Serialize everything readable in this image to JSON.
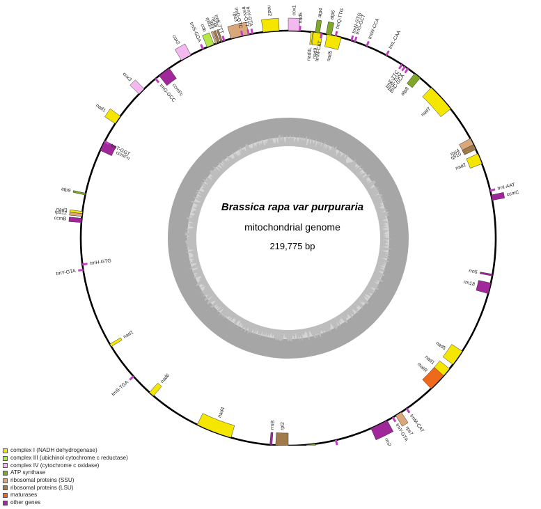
{
  "genome": {
    "organism": "Brassica rapa var purpuraria",
    "type": "mitochondrial genome",
    "size_label": "219,775 bp",
    "length_bp": 219775
  },
  "legend": [
    {
      "key": "complex1",
      "label": "complex I (NADH dehydrogenase)",
      "color": "#f5e600"
    },
    {
      "key": "complex3",
      "label": "complex III (ubichinol cytochrome c reductase)",
      "color": "#b4e64a"
    },
    {
      "key": "complex4",
      "label": "complex IV (cytochrome c oxidase)",
      "color": "#f4b8f0"
    },
    {
      "key": "atp",
      "label": "ATP synthase",
      "color": "#7fa829"
    },
    {
      "key": "ssu",
      "label": "ribosomal proteins (SSU)",
      "color": "#d9a77a"
    },
    {
      "key": "lsu",
      "label": "ribosomal proteins (LSU)",
      "color": "#a07a4a"
    },
    {
      "key": "maturases",
      "label": "maturases",
      "color": "#ee6a1a"
    },
    {
      "key": "other",
      "label": "other genes",
      "color": "#a0289a"
    }
  ],
  "trna_color": "#c040c0",
  "genes": [
    {
      "name": "nad9",
      "pos": 7.0,
      "len": 2.5,
      "strand": "in",
      "cat": "complex1"
    },
    {
      "name": "nad5",
      "pos": 10.8,
      "len": 4.0,
      "strand": "in",
      "cat": "complex1"
    },
    {
      "name": "trnN-GTG",
      "pos": 17.5,
      "strand": "out",
      "cat": "trna"
    },
    {
      "name": "trnS-GCT",
      "pos": 18.5,
      "strand": "out",
      "cat": "trna"
    },
    {
      "name": "trnW-CCA",
      "pos": 22.0,
      "strand": "out",
      "cat": "trna"
    },
    {
      "name": "trnL-CAA",
      "pos": 28.0,
      "strand": "out",
      "cat": "trna"
    },
    {
      "name": "trnE-TTC",
      "pos": 33.0,
      "strand": "in",
      "cat": "trna"
    },
    {
      "name": "trnS-TGG",
      "pos": 34.0,
      "strand": "in",
      "cat": "trna"
    },
    {
      "name": "trnC-GCA",
      "pos": 35.0,
      "strand": "in",
      "cat": "trna"
    },
    {
      "name": "atp8",
      "pos": 37.5,
      "len": 2.0,
      "strand": "in",
      "cat": "atp"
    },
    {
      "name": "nad7",
      "pos": 43.5,
      "len": 8.0,
      "strand": "in",
      "cat": "complex1"
    },
    {
      "name": "rps4",
      "pos": 61.3,
      "len": 3.0,
      "strand": "in",
      "cat": "ssu"
    },
    {
      "name": "rpl10",
      "pos": 63.2,
      "len": 1.5,
      "strand": "in",
      "cat": "lsu"
    },
    {
      "name": "nad2",
      "pos": 66.0,
      "len": 3.0,
      "strand": "in",
      "cat": "complex1"
    },
    {
      "name": "trnI-AAT",
      "pos": 76.5,
      "strand": "out",
      "cat": "trna"
    },
    {
      "name": "ccmC",
      "pos": 78.0,
      "len": 1.5,
      "strand": "out",
      "cat": "other"
    },
    {
      "name": "rrn5",
      "pos": 100.0,
      "strand": "in",
      "cat": "other"
    },
    {
      "name": "rrn18",
      "pos": 102.5,
      "len": 3.0,
      "strand": "in",
      "cat": "other"
    },
    {
      "name": "nad5",
      "pos": 123.0,
      "len": 4.5,
      "strand": "in",
      "cat": "complex1"
    },
    {
      "name": "nad1",
      "pos": 129.0,
      "len": 3.5,
      "strand": "in",
      "cat": "complex1"
    },
    {
      "name": "matR",
      "pos": 131.5,
      "len": 5.0,
      "strand": "in",
      "cat": "maturases"
    },
    {
      "name": "trnM-CAT",
      "pos": 145.0,
      "strand": "out",
      "cat": "trna"
    },
    {
      "name": "rps7",
      "pos": 147.0,
      "len": 1.8,
      "strand": "out",
      "cat": "ssu"
    },
    {
      "name": "trnY-GTA",
      "pos": 149.5,
      "strand": "out",
      "cat": "trna"
    },
    {
      "name": "rrn26",
      "pos": 151.5,
      "len": 5.0,
      "strand": "out",
      "cat": "other"
    },
    {
      "name": "trnM-CAT",
      "pos": 166.5,
      "strand": "out",
      "cat": "trna"
    },
    {
      "name": "atp1",
      "pos": 172.5,
      "len": 2.5,
      "strand": "out",
      "cat": "atp"
    },
    {
      "name": "rpl2",
      "pos": 180.0,
      "len": 3.5,
      "strand": "in",
      "cat": "lsu"
    },
    {
      "name": "rrnB",
      "pos": 184.5,
      "len": 0.6,
      "strand": "in",
      "cat": "other"
    },
    {
      "name": "nad4",
      "pos": 196.0,
      "len": 10.0,
      "strand": "in",
      "cat": "complex1"
    },
    {
      "name": "nad6",
      "pos": 220.5,
      "len": 1.5,
      "strand": "in",
      "cat": "complex1"
    },
    {
      "name": "trnS-TGA",
      "pos": 228.0,
      "strand": "out",
      "cat": "trna"
    },
    {
      "name": "nad1",
      "pos": 238.5,
      "len": 0.8,
      "strand": "in",
      "cat": "complex1"
    },
    {
      "name": "trnY-GTA",
      "pos": 261.0,
      "strand": "out",
      "cat": "trna"
    },
    {
      "name": "trnH-GTG",
      "pos": 262.5,
      "strand": "in",
      "cat": "trna"
    },
    {
      "name": "ccmB",
      "pos": 274.3,
      "len": 1.2,
      "strand": "out",
      "cat": "other"
    },
    {
      "name": "rps12",
      "pos": 276.0,
      "len": 0.8,
      "strand": "out",
      "cat": "ssu"
    },
    {
      "name": "nad3",
      "pos": 276.8,
      "len": 0.6,
      "strand": "out",
      "cat": "complex1"
    },
    {
      "name": "atp9",
      "pos": 282.0,
      "len": 0.5,
      "strand": "out",
      "cat": "atp"
    },
    {
      "name": "ccmFn",
      "pos": 295.0,
      "len": 3.0,
      "strand": "in",
      "cat": "other"
    },
    {
      "name": "trnT-GGT",
      "pos": 297.5,
      "strand": "in",
      "cat": "trna"
    },
    {
      "name": "nad1",
      "pos": 303.5,
      "len": 2.5,
      "strand": "out",
      "cat": "complex1"
    },
    {
      "name": "cox3",
      "pos": 314.0,
      "len": 2.0,
      "strand": "out",
      "cat": "complex4"
    },
    {
      "name": "trnG-GCC",
      "pos": 320.0,
      "strand": "in",
      "cat": "trna"
    },
    {
      "name": "ccmFc",
      "pos": 321.5,
      "len": 3.5,
      "strand": "in",
      "cat": "other"
    },
    {
      "name": "cox2",
      "pos": 329.0,
      "len": 3.0,
      "strand": "out",
      "cat": "complex4"
    },
    {
      "name": "trnS-GGA",
      "pos": 335.5,
      "strand": "out",
      "cat": "trna"
    },
    {
      "name": "cob",
      "pos": 337.0,
      "len": 2.0,
      "strand": "out",
      "cat": "complex3"
    },
    {
      "name": "rps14",
      "pos": 339.5,
      "len": 0.5,
      "strand": "out",
      "cat": "ssu"
    },
    {
      "name": "rpl5",
      "pos": 340.2,
      "len": 0.5,
      "strand": "out",
      "cat": "lsu"
    },
    {
      "name": "rpl16",
      "pos": 341.0,
      "len": 0.5,
      "strand": "out",
      "cat": "lsu"
    },
    {
      "name": "rps3",
      "pos": 344.0,
      "len": 5.0,
      "strand": "out",
      "cat": "ssu"
    },
    {
      "name": "trnK-TTT",
      "pos": 341.8,
      "strand": "out",
      "cat": "trna"
    },
    {
      "name": "trnD-GTC",
      "pos": 347.0,
      "strand": "out",
      "cat": "trna"
    },
    {
      "name": "trnN-GTT",
      "pos": 348.8,
      "strand": "out",
      "cat": "trna"
    },
    {
      "name": "trnY-GTA",
      "pos": 349.8,
      "strand": "out",
      "cat": "trna"
    },
    {
      "name": "nad2",
      "pos": 353.0,
      "len": 4.5,
      "strand": "out",
      "cat": "complex1"
    },
    {
      "name": "cox1",
      "pos": 0.0,
      "len": 3.0,
      "strand": "out",
      "cat": "complex4"
    },
    {
      "name": "nad5",
      "pos": 3.0,
      "strand": "out",
      "cat": "trna"
    },
    {
      "name": "nad4L",
      "pos": 6.3,
      "len": 0.5,
      "strand": "in",
      "cat": "complex1"
    },
    {
      "name": "atp4",
      "pos": 7.5,
      "len": 1.2,
      "strand": "out",
      "cat": "atp"
    },
    {
      "name": "trnM-CAT",
      "pos": 9.0,
      "strand": "in",
      "cat": "trna"
    },
    {
      "name": "atp6",
      "pos": 10.5,
      "len": 1.5,
      "strand": "out",
      "cat": "atp"
    },
    {
      "name": "trnQ-TTG",
      "pos": 13.0,
      "strand": "out",
      "cat": "trna"
    }
  ]
}
